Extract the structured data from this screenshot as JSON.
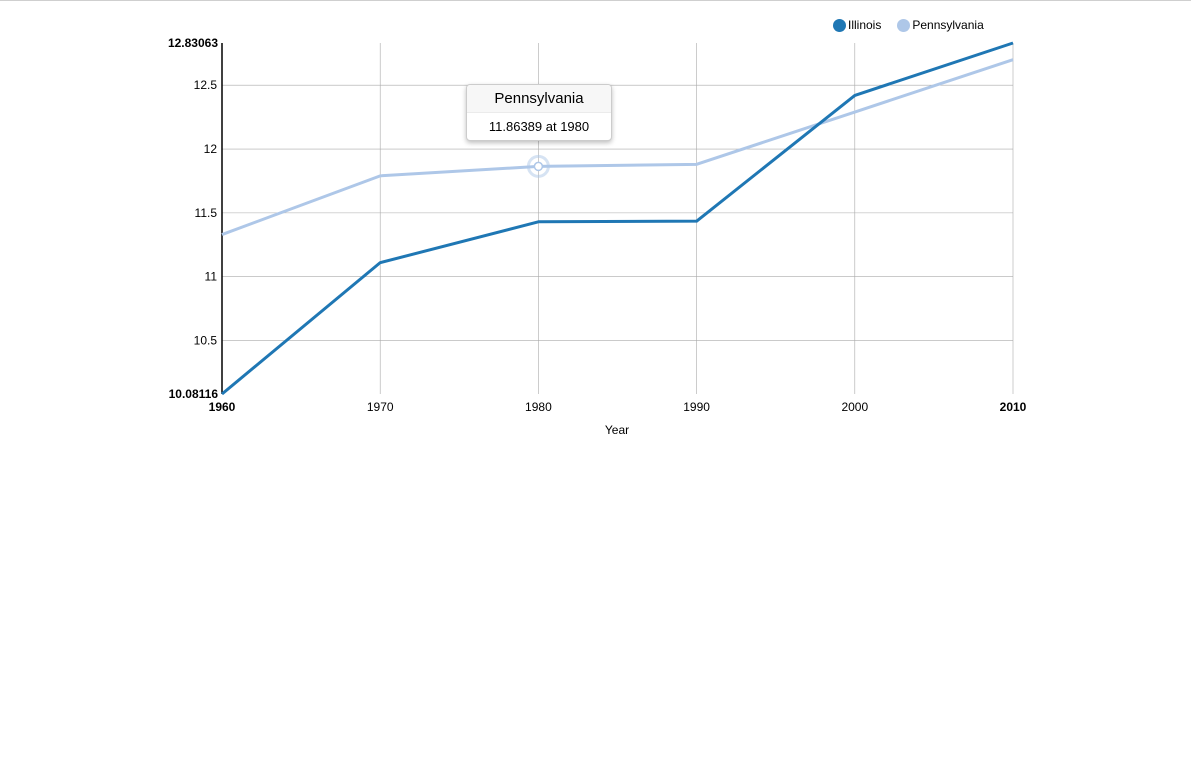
{
  "chart_data": {
    "type": "line",
    "x": [
      1960,
      1970,
      1980,
      1990,
      2000,
      2010
    ],
    "xlabel": "Year",
    "ylabel": "",
    "ylim": [
      10.08116,
      12.83063
    ],
    "y_min_label": "10.08116",
    "y_max_label": "12.83063",
    "x_ticks": [
      "1960",
      "1970",
      "1980",
      "1990",
      "2000",
      "2010"
    ],
    "y_ticks": [
      "10.5",
      "11",
      "11.5",
      "12",
      "12.5"
    ],
    "grid": true,
    "legend_position": "top-right",
    "series": [
      {
        "name": "Illinois",
        "color": "#1f77b4",
        "values": [
          10.08116,
          11.11,
          11.43,
          11.435,
          12.42,
          12.83063
        ]
      },
      {
        "name": "Pennsylvania",
        "color": "#aec7e8",
        "values": [
          11.33,
          11.79,
          11.86389,
          11.88,
          12.29,
          12.7
        ]
      }
    ]
  },
  "tooltip": {
    "series_name": "Pennsylvania",
    "text": "11.86389 at 1980",
    "x": 1980,
    "y": 11.86389,
    "color": "#aec7e8"
  }
}
